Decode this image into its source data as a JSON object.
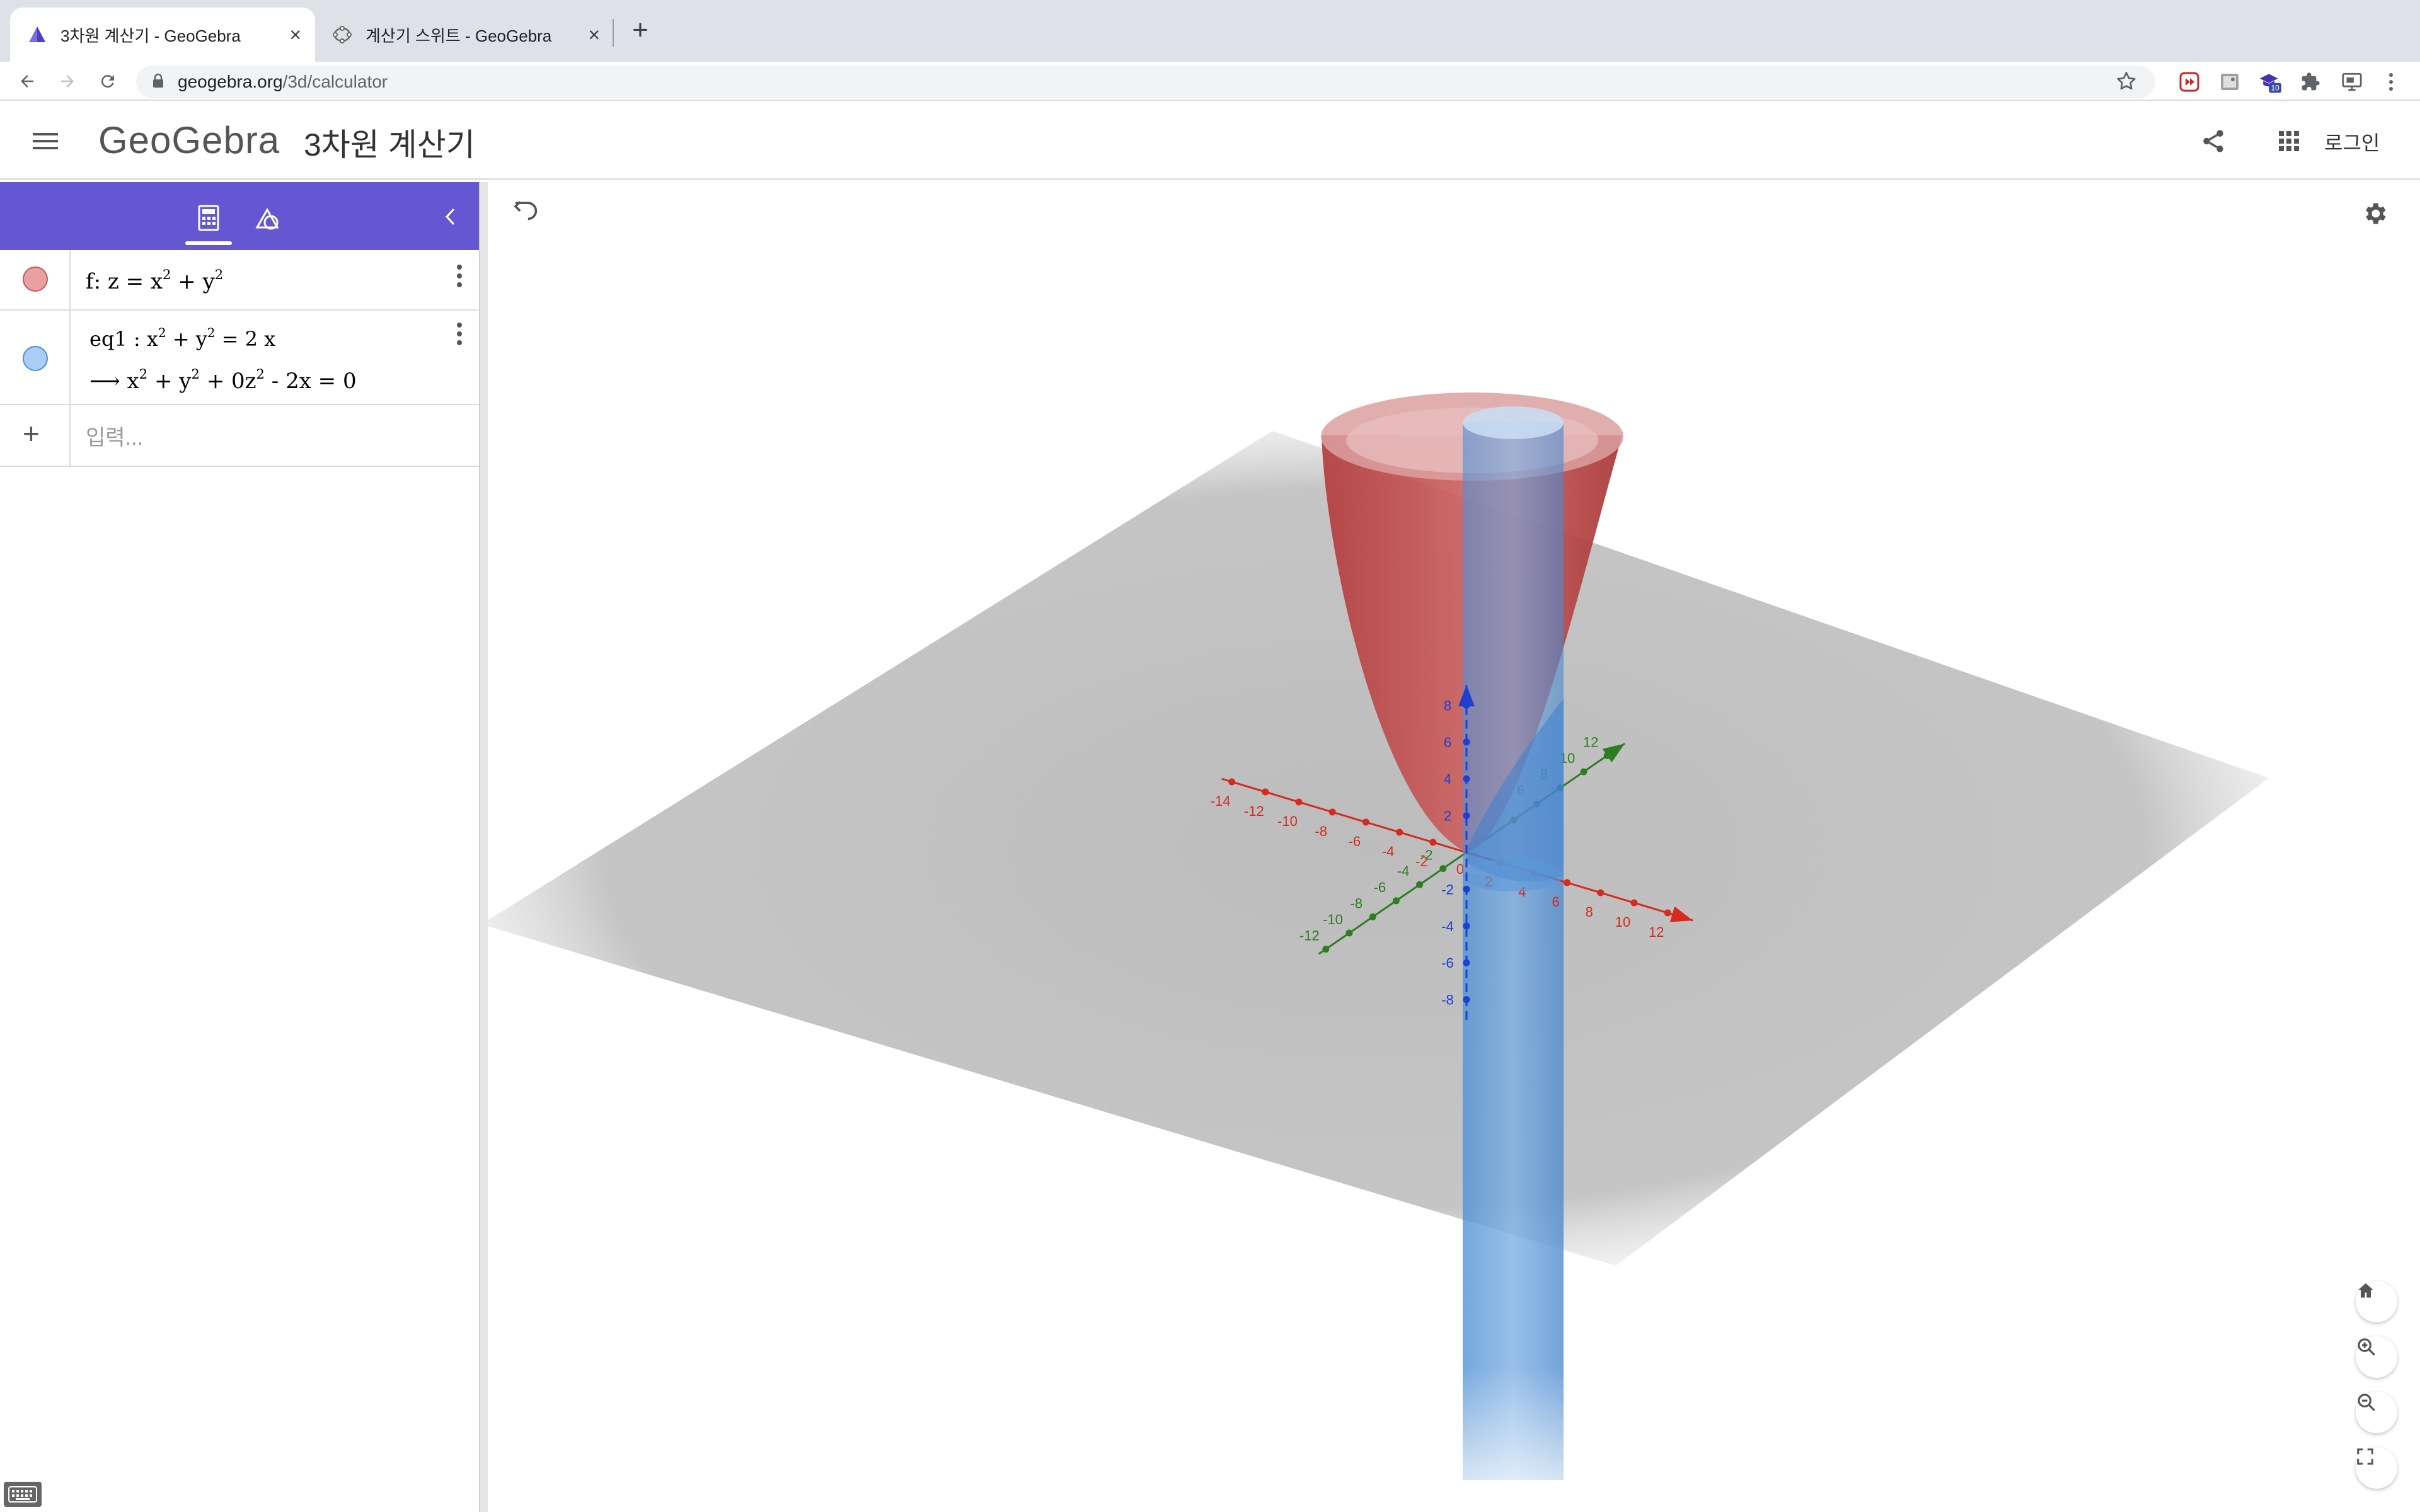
{
  "browser": {
    "tabs": [
      {
        "title": "3차원 계산기 - GeoGebra",
        "active": true
      },
      {
        "title": "계산기 스위트 - GeoGebra",
        "active": false
      }
    ],
    "url_host": "geogebra.org",
    "url_path": "/3d/calculator",
    "extension_badge": "10"
  },
  "header": {
    "logo": "GeoGebra",
    "title": "3차원 계산기",
    "login_label": "로그인"
  },
  "algebra": {
    "items": [
      {
        "label": "f: z = x",
        "mid": " + y",
        "color": "#e7a1a1",
        "border": "#c45a5a"
      },
      {
        "label": "eq1 : x",
        "mid": " + y",
        "tail": " = 2 x",
        "result_prefix": "⟶  x",
        "result_mid1": " + y",
        "result_mid2": " + 0z",
        "result_tail": " - 2x = 0",
        "color": "#a9cdf5",
        "border": "#4f8fd6"
      }
    ],
    "sup2": "2",
    "input_placeholder": "입력..."
  },
  "view3d": {
    "colors": {
      "x_axis": "#d42b1e",
      "y_axis": "#2e7d22",
      "z_axis": "#1f3fcf",
      "surface_f": "#d45a5a",
      "surface_eq1": "#4a90e2"
    },
    "x_ticks": [
      {
        "label": "-14"
      },
      {
        "label": "-12"
      },
      {
        "label": "-10"
      },
      {
        "label": "-8"
      },
      {
        "label": "-6"
      },
      {
        "label": "-4"
      },
      {
        "label": "-2"
      },
      {
        "label": "2"
      },
      {
        "label": "4"
      },
      {
        "label": "6"
      },
      {
        "label": "8"
      },
      {
        "label": "10"
      },
      {
        "label": "12"
      }
    ],
    "y_ticks": [
      {
        "label": "-12"
      },
      {
        "label": "-10"
      },
      {
        "label": "-8"
      },
      {
        "label": "-6"
      },
      {
        "label": "-4"
      },
      {
        "label": "-2"
      },
      {
        "label": "4"
      },
      {
        "label": "6"
      },
      {
        "label": "8"
      },
      {
        "label": "10"
      },
      {
        "label": "12"
      }
    ],
    "z_ticks": [
      {
        "label": "8"
      },
      {
        "label": "6"
      },
      {
        "label": "4"
      },
      {
        "label": "2"
      },
      {
        "label": "-2"
      },
      {
        "label": "-4"
      },
      {
        "label": "-6"
      },
      {
        "label": "-8"
      }
    ],
    "origin_label": "0"
  }
}
